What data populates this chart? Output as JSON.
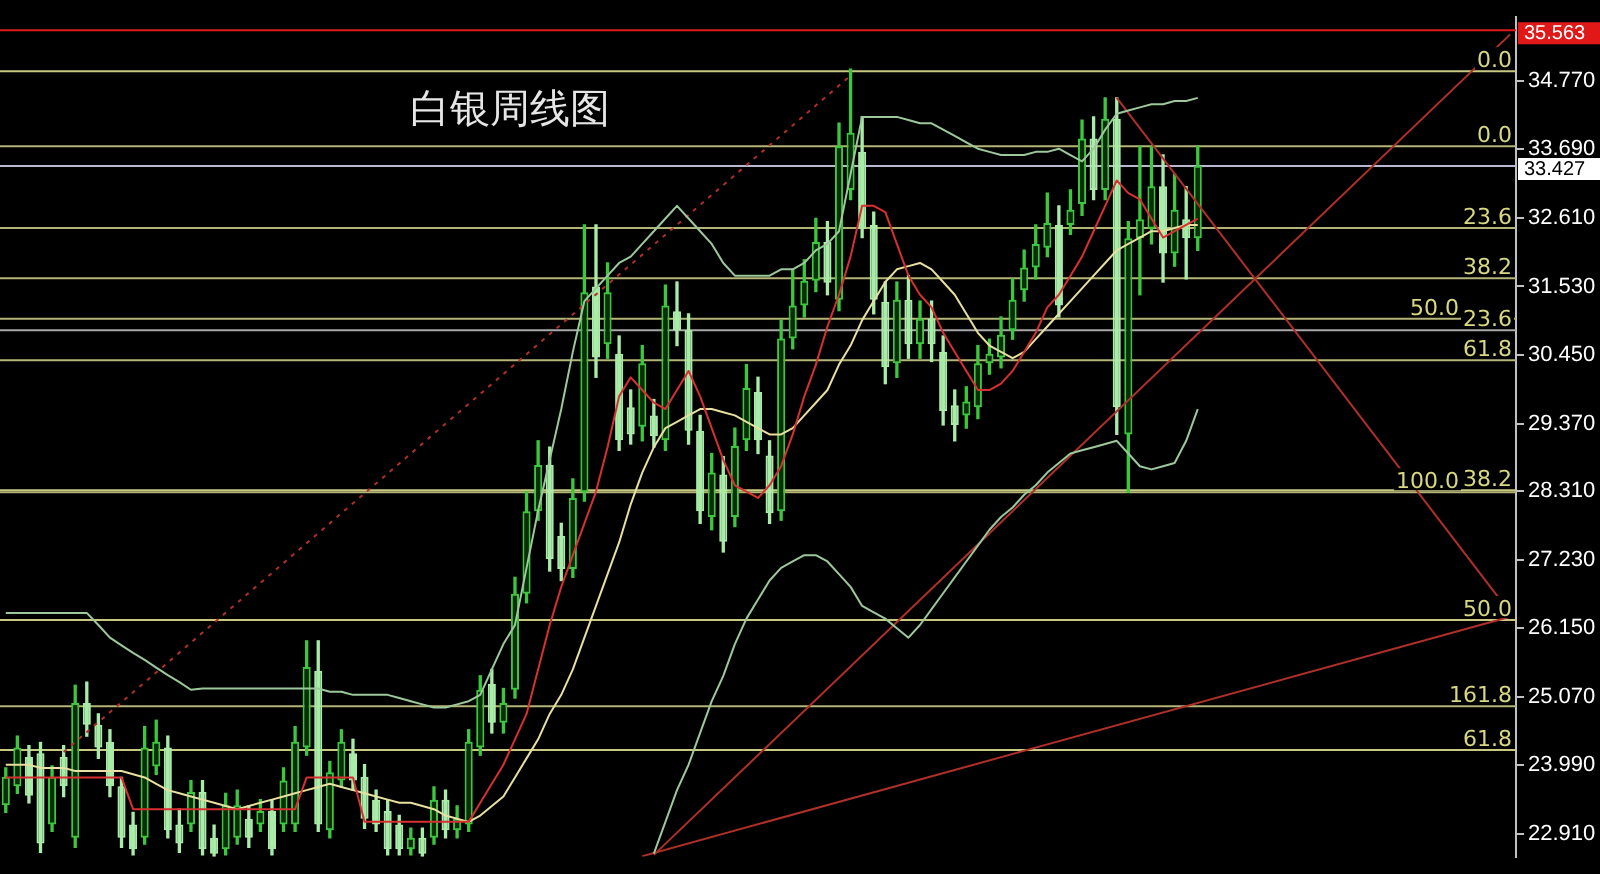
{
  "chart_data": {
    "type": "candlestick",
    "title": "白银周线图",
    "categories": [
      null,
      null,
      null,
      null,
      null,
      null,
      null,
      null,
      null,
      null,
      null,
      null,
      null,
      null,
      null,
      null,
      null,
      null,
      null,
      null,
      null,
      null,
      null,
      null,
      null,
      null,
      null,
      null,
      null,
      null,
      null,
      null,
      null,
      null,
      null,
      null,
      null,
      null,
      null,
      null,
      null,
      null,
      null,
      null,
      null,
      null,
      null,
      null,
      null,
      null,
      null,
      null,
      null,
      null,
      null,
      null,
      null,
      null,
      null,
      null,
      null,
      null,
      null,
      null,
      null,
      null,
      null,
      null,
      null,
      null,
      null,
      null,
      null,
      null,
      null,
      null,
      null,
      null,
      null,
      null,
      null,
      null,
      null,
      null,
      null,
      null,
      null,
      null,
      null,
      null,
      null,
      null,
      null,
      null,
      null,
      null,
      null,
      null,
      null,
      null,
      null,
      null,
      null,
      null,
      null,
      null,
      null,
      null,
      null,
      null,
      null,
      null,
      null,
      null,
      null,
      null,
      null,
      null,
      null,
      null,
      null,
      null,
      null,
      null,
      null,
      null,
      null,
      null,
      null,
      null,
      null
    ],
    "colors": [
      "#3cc83c",
      "#3cc83c",
      "#a8eca8",
      "#a8eca8",
      "#3cc83c",
      "#a8eca8",
      "#3cc83c",
      "#a8eca8",
      "#a8eca8",
      "#a8eca8",
      "#a8eca8",
      "#a8eca8",
      "#3cc83c",
      "#3cc83c",
      "#a8eca8",
      "#a8eca8",
      "#3cc83c",
      "#a8eca8",
      "#a8eca8",
      "#3cc83c",
      "#3cc83c",
      "#a8eca8",
      "#3cc83c",
      "#a8eca8",
      "#3cc83c",
      "#3cc83c",
      "#3cc83c",
      "#a8eca8",
      "#3cc83c",
      "#3cc83c",
      "#a8eca8",
      "#a8eca8",
      "#a8eca8",
      "#a8eca8",
      "#a8eca8",
      "#3cc83c",
      "#a8eca8",
      "#3cc83c",
      "#a8eca8",
      "#3cc83c",
      "#3cc83c",
      "#3cc83c",
      "#a8eca8",
      "#3cc83c",
      "#3cc83c",
      "#3cc83c",
      "#3cc83c",
      "#a8eca8",
      "#a8eca8",
      "#3cc83c",
      "#3cc83c",
      "#a8eca8",
      "#3cc83c",
      "#a8eca8",
      "#a8eca8",
      "#3cc83c",
      "#a8eca8",
      "#3cc83c",
      "#a8eca8",
      "#a8eca8",
      "#a8eca8",
      "#3cc83c",
      "#a8eca8",
      "#3cc83c",
      "#3cc83c",
      "#a8eca8",
      "#a8eca8",
      "#3cc83c",
      "#3cc83c",
      "#3cc83c",
      "#3cc83c",
      "#a8eca8",
      "#3cc83c",
      "#3cc83c",
      "#a8eca8",
      "#a8eca8",
      "#a8eca8",
      "#3cc83c",
      "#a8eca8",
      "#3cc83c",
      "#a8eca8",
      "#a8eca8",
      "#a8eca8",
      "#3cc83c",
      "#3cc83c",
      "#3cc83c",
      "#3cc83c",
      "#3cc83c",
      "#3cc83c",
      "#3cc83c",
      "#3cc83c",
      "#a8eca8",
      "#3cc83c",
      "#3cc83c",
      "#a8eca8",
      "#3cc83c",
      "#a8eca8",
      "#3cc83c",
      "#3cc83c",
      "#3cc83c",
      "#a8eca8",
      "#3cc83c",
      "#a8eca8",
      "#3cc83c",
      null,
      null,
      null,
      null,
      null,
      null,
      null,
      null,
      null,
      null,
      null,
      null,
      null,
      null,
      null,
      null,
      null,
      null,
      null,
      null,
      null,
      null,
      null,
      null,
      null,
      null,
      null
    ],
    "ohlc": [
      [
        23.36,
        23.95,
        23.25,
        23.81
      ],
      [
        23.66,
        24.45,
        23.55,
        24.27
      ],
      [
        24.12,
        24.3,
        23.4,
        23.51
      ],
      [
        24.18,
        24.35,
        22.62,
        22.76
      ],
      [
        23.06,
        23.98,
        22.95,
        23.81
      ],
      [
        24.12,
        24.3,
        23.5,
        23.66
      ],
      [
        22.85,
        25.25,
        22.7,
        24.97
      ],
      [
        24.97,
        25.3,
        24.45,
        24.63
      ],
      [
        24.63,
        24.8,
        24.1,
        24.27
      ],
      [
        24.36,
        24.55,
        23.5,
        23.66
      ],
      [
        23.66,
        23.8,
        22.7,
        22.85
      ],
      [
        23.06,
        23.25,
        22.58,
        22.67
      ],
      [
        22.85,
        24.6,
        22.75,
        24.27
      ],
      [
        23.97,
        24.7,
        23.85,
        24.36
      ],
      [
        24.27,
        24.45,
        22.85,
        22.97
      ],
      [
        23.06,
        23.3,
        22.62,
        22.76
      ],
      [
        23.06,
        23.75,
        22.95,
        23.57
      ],
      [
        23.57,
        23.75,
        22.58,
        22.67
      ],
      [
        22.85,
        23.05,
        22.56,
        22.6
      ],
      [
        22.67,
        23.55,
        22.58,
        23.36
      ],
      [
        22.85,
        23.6,
        22.75,
        23.36
      ],
      [
        23.15,
        23.35,
        22.7,
        22.85
      ],
      [
        23.06,
        23.45,
        22.95,
        23.27
      ],
      [
        23.27,
        23.45,
        22.58,
        22.67
      ],
      [
        23.06,
        23.95,
        22.95,
        23.75
      ],
      [
        23.06,
        24.6,
        22.95,
        24.36
      ],
      [
        24.27,
        25.95,
        24.15,
        25.54
      ],
      [
        25.48,
        25.95,
        22.95,
        23.06
      ],
      [
        22.97,
        24.05,
        22.85,
        23.88
      ],
      [
        23.75,
        24.55,
        23.65,
        24.36
      ],
      [
        24.18,
        24.4,
        23.6,
        23.75
      ],
      [
        23.81,
        24.0,
        23.0,
        23.15
      ],
      [
        23.45,
        23.6,
        22.95,
        23.06
      ],
      [
        23.27,
        23.45,
        22.58,
        22.67
      ],
      [
        23.06,
        23.2,
        22.58,
        22.67
      ],
      [
        22.67,
        23.0,
        22.58,
        22.85
      ],
      [
        22.85,
        23.0,
        22.56,
        22.6
      ],
      [
        22.85,
        23.65,
        22.75,
        23.45
      ],
      [
        23.45,
        23.6,
        22.85,
        22.97
      ],
      [
        22.97,
        23.35,
        22.85,
        23.15
      ],
      [
        23.06,
        24.55,
        22.95,
        24.36
      ],
      [
        24.27,
        25.4,
        24.15,
        25.18
      ],
      [
        25.27,
        25.5,
        24.5,
        24.66
      ],
      [
        24.66,
        25.2,
        24.5,
        24.97
      ],
      [
        25.18,
        26.95,
        25.05,
        26.69
      ],
      [
        26.69,
        28.3,
        26.55,
        27.99
      ],
      [
        27.99,
        29.1,
        27.85,
        28.72
      ],
      [
        28.72,
        29.0,
        27.05,
        27.24
      ],
      [
        27.6,
        27.8,
        26.9,
        27.08
      ],
      [
        27.08,
        28.5,
        26.95,
        28.2
      ],
      [
        28.29,
        32.5,
        28.15,
        31.44
      ],
      [
        31.53,
        32.5,
        30.1,
        30.41
      ],
      [
        30.62,
        31.9,
        30.4,
        31.44
      ],
      [
        30.47,
        30.75,
        28.95,
        29.11
      ],
      [
        29.63,
        29.9,
        29.05,
        29.2
      ],
      [
        29.32,
        30.6,
        29.1,
        30.32
      ],
      [
        29.5,
        29.75,
        29.0,
        29.17
      ],
      [
        29.11,
        31.55,
        28.95,
        31.23
      ],
      [
        31.14,
        31.6,
        30.6,
        30.84
      ],
      [
        30.84,
        31.1,
        29.05,
        29.26
      ],
      [
        29.26,
        29.5,
        27.8,
        27.99
      ],
      [
        27.9,
        28.9,
        27.7,
        28.6
      ],
      [
        28.57,
        28.85,
        27.35,
        27.51
      ],
      [
        27.9,
        29.3,
        27.75,
        29.02
      ],
      [
        29.11,
        30.3,
        28.95,
        29.93
      ],
      [
        29.87,
        30.1,
        28.9,
        29.11
      ],
      [
        28.87,
        29.1,
        27.8,
        27.96
      ],
      [
        27.99,
        31.0,
        27.85,
        30.71
      ],
      [
        30.71,
        31.8,
        30.55,
        31.23
      ],
      [
        31.23,
        31.95,
        31.05,
        31.62
      ],
      [
        31.62,
        32.6,
        31.45,
        32.23
      ],
      [
        32.23,
        32.55,
        31.4,
        31.59
      ],
      [
        31.32,
        34.1,
        31.15,
        33.74
      ],
      [
        33.05,
        34.95,
        32.9,
        33.95
      ],
      [
        33.65,
        34.2,
        32.3,
        32.44
      ],
      [
        32.5,
        32.7,
        31.1,
        31.32
      ],
      [
        31.29,
        31.6,
        30.0,
        30.26
      ],
      [
        30.32,
        31.6,
        30.1,
        31.32
      ],
      [
        31.32,
        31.7,
        30.4,
        30.62
      ],
      [
        30.62,
        31.3,
        30.4,
        31.02
      ],
      [
        31.02,
        31.3,
        30.35,
        30.62
      ],
      [
        30.5,
        30.75,
        29.35,
        29.57
      ],
      [
        29.66,
        29.9,
        29.1,
        29.35
      ],
      [
        29.5,
        29.95,
        29.3,
        29.72
      ],
      [
        29.63,
        30.6,
        29.45,
        30.32
      ],
      [
        30.32,
        30.7,
        30.15,
        30.47
      ],
      [
        30.41,
        31.05,
        30.25,
        30.77
      ],
      [
        30.84,
        31.65,
        30.7,
        31.32
      ],
      [
        31.47,
        32.1,
        31.3,
        31.83
      ],
      [
        31.83,
        32.5,
        31.65,
        32.2
      ],
      [
        32.14,
        33.0,
        32.0,
        32.53
      ],
      [
        32.5,
        32.8,
        31.05,
        31.23
      ],
      [
        32.5,
        33.05,
        32.35,
        32.74
      ],
      [
        32.83,
        34.15,
        32.65,
        33.86
      ],
      [
        33.86,
        34.2,
        32.9,
        33.05
      ],
      [
        33.05,
        34.5,
        32.9,
        34.17
      ],
      [
        34.17,
        34.5,
        29.2,
        29.63
      ],
      [
        29.2,
        32.55,
        28.29,
        32.29
      ],
      [
        32.29,
        33.74,
        31.4,
        32.59
      ],
      [
        32.44,
        33.74,
        32.2,
        33.11
      ],
      [
        33.11,
        33.6,
        31.6,
        32.05
      ],
      [
        32.05,
        33.3,
        31.85,
        32.74
      ],
      [
        32.59,
        33.1,
        31.65,
        32.29
      ],
      [
        32.29,
        33.74,
        32.1,
        33.43
      ],
      null,
      null,
      null,
      null,
      null,
      null,
      null,
      null,
      null,
      null,
      null,
      null,
      null,
      null,
      null,
      null,
      null,
      null,
      null,
      null,
      null,
      null,
      null,
      null,
      null,
      null,
      null
    ],
    "ylim": [
      22.55,
      35.77
    ],
    "yticks": [
      {
        "value": 22.91,
        "label": "22.910"
      },
      {
        "value": 23.99,
        "label": "23.990"
      },
      {
        "value": 25.07,
        "label": "25.070"
      },
      {
        "value": 26.15,
        "label": "26.150"
      },
      {
        "value": 27.23,
        "label": "27.230"
      },
      {
        "value": 28.31,
        "label": "28.310"
      },
      {
        "value": 29.37,
        "label": "29.370"
      },
      {
        "value": 30.45,
        "label": "30.450"
      },
      {
        "value": 31.53,
        "label": "31.530"
      },
      {
        "value": 32.61,
        "label": "32.610"
      },
      {
        "value": 33.69,
        "label": "33.690"
      },
      {
        "value": 34.77,
        "label": "34.770"
      }
    ],
    "tick_labels": "y",
    "series": [
      {
        "type": "line",
        "color": "#9cc89c",
        "values": [
          26.39,
          26.39,
          26.39,
          26.39,
          26.39,
          26.39,
          26.39,
          26.39,
          26.2,
          26.0,
          25.88,
          25.76,
          25.65,
          25.53,
          25.41,
          25.3,
          25.18,
          25.2,
          25.2,
          25.2,
          25.2,
          25.2,
          25.2,
          25.2,
          25.2,
          25.2,
          25.2,
          25.2,
          25.15,
          25.15,
          25.1,
          25.1,
          25.1,
          25.1,
          25.05,
          25.0,
          24.95,
          24.9,
          24.9,
          24.95,
          25.0,
          25.1,
          25.5,
          25.9,
          26.2,
          27.1,
          28.0,
          28.8,
          29.6,
          30.5,
          31.3,
          31.5,
          31.7,
          31.9,
          32.0,
          32.2,
          32.4,
          32.6,
          32.8,
          32.6,
          32.4,
          32.2,
          31.9,
          31.7,
          31.7,
          31.7,
          31.7,
          31.8,
          31.8,
          31.9,
          32.1,
          32.2,
          32.4,
          33.3,
          34.2,
          34.2,
          34.2,
          34.2,
          34.15,
          34.1,
          34.1,
          34.0,
          33.9,
          33.8,
          33.7,
          33.65,
          33.6,
          33.6,
          33.6,
          33.65,
          33.65,
          33.7,
          33.6,
          33.5,
          33.7,
          34.0,
          34.25,
          34.3,
          34.35,
          34.4,
          34.4,
          34.45,
          34.45,
          34.5,
          null,
          null,
          null,
          null,
          null,
          null,
          null,
          null,
          null,
          null,
          null,
          null,
          null,
          null,
          null,
          null,
          null,
          null,
          null,
          null,
          null,
          null,
          null,
          null,
          null,
          null,
          null
        ]
      },
      {
        "type": "line",
        "color": "#9cc89c",
        "values": [
          null,
          null,
          null,
          null,
          null,
          null,
          null,
          null,
          null,
          null,
          null,
          null,
          null,
          null,
          null,
          null,
          null,
          null,
          null,
          null,
          null,
          null,
          null,
          null,
          null,
          null,
          null,
          null,
          null,
          null,
          null,
          null,
          null,
          null,
          null,
          null,
          null,
          null,
          null,
          null,
          null,
          null,
          null,
          null,
          null,
          null,
          null,
          null,
          null,
          null,
          null,
          null,
          null,
          null,
          null,
          null,
          22.6,
          23.1,
          23.6,
          24.0,
          24.5,
          25.0,
          25.4,
          25.9,
          26.3,
          26.6,
          26.9,
          27.1,
          27.2,
          27.3,
          27.3,
          27.2,
          27.0,
          26.8,
          26.5,
          26.4,
          26.3,
          26.15,
          26.0,
          26.2,
          26.45,
          26.7,
          26.95,
          27.2,
          27.45,
          27.7,
          27.9,
          28.05,
          28.25,
          28.4,
          28.6,
          28.75,
          28.9,
          28.95,
          29.0,
          29.05,
          29.1,
          28.9,
          28.7,
          28.65,
          28.7,
          28.75,
          29.1,
          29.6,
          null,
          null,
          null,
          null,
          null,
          null,
          null,
          null,
          null,
          null,
          null,
          null,
          null,
          null,
          null,
          null,
          null,
          null,
          null,
          null,
          null,
          null,
          null,
          null,
          null,
          null,
          null
        ]
      },
      {
        "type": "line",
        "color": "#d83030",
        "values": [
          23.8,
          23.8,
          23.8,
          23.8,
          23.8,
          23.8,
          23.8,
          23.8,
          23.8,
          23.8,
          23.8,
          23.3,
          23.3,
          23.3,
          23.3,
          23.3,
          23.3,
          23.3,
          23.3,
          23.3,
          23.3,
          23.3,
          23.3,
          23.3,
          23.3,
          23.3,
          23.8,
          23.8,
          23.8,
          23.8,
          23.8,
          23.1,
          23.1,
          23.1,
          23.1,
          23.1,
          23.1,
          23.1,
          23.1,
          23.1,
          23.1,
          23.4,
          23.7,
          24.0,
          24.4,
          24.8,
          25.5,
          26.2,
          26.8,
          27.3,
          27.8,
          28.3,
          29.0,
          29.8,
          30.1,
          29.9,
          29.7,
          29.6,
          29.9,
          30.2,
          29.8,
          29.3,
          28.8,
          28.4,
          28.3,
          28.2,
          28.4,
          28.7,
          29.2,
          29.8,
          30.3,
          30.9,
          31.4,
          32.0,
          32.8,
          32.8,
          32.7,
          32.2,
          31.7,
          31.4,
          31.2,
          30.8,
          30.5,
          30.2,
          29.9,
          29.9,
          30.0,
          30.2,
          30.5,
          30.8,
          31.2,
          31.4,
          31.7,
          32.0,
          32.4,
          32.8,
          33.2,
          33.0,
          32.9,
          32.6,
          32.3,
          32.4,
          32.5,
          32.6,
          null,
          null,
          null,
          null,
          null,
          null,
          null,
          null,
          null,
          null,
          null,
          null,
          null,
          null,
          null,
          null,
          null,
          null,
          null,
          null,
          null,
          null,
          null,
          null,
          null,
          null,
          null
        ]
      },
      {
        "type": "line",
        "color": "#e8e0a0",
        "values": [
          24.0,
          24.0,
          24.0,
          23.95,
          23.95,
          23.95,
          23.9,
          23.9,
          23.9,
          23.9,
          23.9,
          23.85,
          23.8,
          23.7,
          23.6,
          23.55,
          23.5,
          23.45,
          23.4,
          23.35,
          23.3,
          23.35,
          23.4,
          23.45,
          23.5,
          23.55,
          23.6,
          23.65,
          23.7,
          23.65,
          23.6,
          23.55,
          23.5,
          23.45,
          23.4,
          23.4,
          23.35,
          23.3,
          23.2,
          23.15,
          23.1,
          23.2,
          23.35,
          23.5,
          23.8,
          24.1,
          24.4,
          24.8,
          25.1,
          25.5,
          26.0,
          26.5,
          27.0,
          27.5,
          28.1,
          28.6,
          29.0,
          29.3,
          29.4,
          29.5,
          29.6,
          29.6,
          29.55,
          29.5,
          29.4,
          29.3,
          29.2,
          29.2,
          29.3,
          29.5,
          29.7,
          29.9,
          30.3,
          30.6,
          31.0,
          31.3,
          31.6,
          31.8,
          31.85,
          31.9,
          31.8,
          31.6,
          31.4,
          31.1,
          30.8,
          30.6,
          30.5,
          30.4,
          30.5,
          30.7,
          30.9,
          31.1,
          31.3,
          31.5,
          31.7,
          31.9,
          32.1,
          32.2,
          32.3,
          32.4,
          32.4,
          32.45,
          32.5,
          32.5,
          null,
          null,
          null,
          null,
          null,
          null,
          null,
          null,
          null,
          null,
          null,
          null,
          null,
          null,
          null,
          null,
          null,
          null,
          null,
          null,
          null,
          null,
          null,
          null,
          null,
          null,
          null
        ]
      },
      {
        "type": "line",
        "color": "#b03028",
        "values": [
          null,
          null,
          null,
          null,
          null,
          null,
          null,
          null,
          null,
          null,
          null,
          null,
          null,
          null,
          null,
          null,
          null,
          null,
          null,
          null,
          null,
          null,
          null,
          null,
          null,
          null,
          null,
          null,
          null,
          null,
          null,
          null,
          null,
          null,
          null,
          null,
          null,
          null,
          null,
          null,
          null,
          null,
          null,
          null,
          null,
          null,
          null,
          null,
          null,
          null,
          null,
          null,
          null,
          null,
          null,
          null,
          22.58,
          null,
          null,
          null,
          null,
          null,
          null,
          null,
          null,
          null,
          null,
          null,
          null,
          null,
          null,
          null,
          null,
          null,
          null,
          null,
          null,
          null,
          null,
          null,
          null,
          null,
          null,
          null,
          null,
          null,
          null,
          null,
          null,
          null,
          null,
          null,
          null,
          null,
          null,
          null,
          null,
          null,
          null,
          null,
          null,
          null,
          null,
          null,
          null,
          null,
          null,
          null,
          null,
          null,
          null,
          null,
          null,
          null,
          null,
          null,
          null,
          null,
          null,
          null,
          null,
          null,
          null,
          null,
          null,
          null,
          null,
          null,
          null,
          null,
          35.5
        ]
      },
      {
        "type": "line",
        "color": "#b03028",
        "line_style": "dotted",
        "values": [
          null,
          null,
          null,
          null,
          null,
          24.2,
          null,
          null,
          null,
          null,
          null,
          null,
          null,
          null,
          null,
          null,
          null,
          null,
          null,
          null,
          null,
          null,
          null,
          null,
          null,
          null,
          null,
          null,
          null,
          null,
          null,
          null,
          null,
          null,
          null,
          null,
          null,
          null,
          null,
          null,
          null,
          null,
          null,
          null,
          null,
          null,
          null,
          null,
          null,
          null,
          null,
          null,
          null,
          null,
          null,
          null,
          null,
          null,
          null,
          null,
          null,
          null,
          null,
          null,
          null,
          null,
          null,
          null,
          null,
          null,
          null,
          null,
          null,
          34.85,
          null,
          null,
          null,
          null,
          null,
          null,
          null,
          null,
          null,
          null,
          null,
          null,
          null,
          null,
          null,
          null,
          null,
          null,
          null,
          null,
          null,
          null,
          null,
          null,
          null,
          null,
          null,
          null,
          null,
          null,
          null,
          null,
          null,
          null,
          null,
          null,
          null,
          null,
          null,
          null,
          null,
          null,
          null,
          null,
          null,
          null,
          null,
          null,
          null,
          null,
          null,
          null,
          null,
          null,
          null,
          null,
          null
        ]
      },
      {
        "type": "line",
        "color": "#b03028",
        "values": [
          null,
          null,
          null,
          null,
          null,
          null,
          null,
          null,
          null,
          null,
          null,
          null,
          null,
          null,
          null,
          null,
          null,
          null,
          null,
          null,
          null,
          null,
          null,
          null,
          null,
          null,
          null,
          null,
          null,
          null,
          null,
          null,
          null,
          null,
          null,
          null,
          null,
          null,
          null,
          null,
          null,
          null,
          null,
          null,
          null,
          null,
          null,
          null,
          null,
          null,
          null,
          null,
          null,
          null,
          null,
          null,
          null,
          null,
          null,
          null,
          null,
          null,
          null,
          null,
          null,
          null,
          null,
          null,
          null,
          null,
          null,
          null,
          null,
          null,
          null,
          null,
          null,
          null,
          null,
          null,
          null,
          null,
          null,
          null,
          null,
          null,
          null,
          null,
          null,
          null,
          null,
          null,
          null,
          null,
          null,
          null,
          34.5,
          null,
          null,
          null,
          null,
          null,
          null,
          null,
          null,
          null,
          null,
          null,
          null,
          null,
          null,
          null,
          null,
          null,
          null,
          null,
          null,
          null,
          null,
          null,
          null,
          null,
          null,
          null,
          null,
          null,
          null,
          null,
          null,
          null,
          26.39
        ]
      },
      {
        "type": "line",
        "color": "#b03028",
        "values": [
          null,
          null,
          null,
          null,
          null,
          null,
          null,
          null,
          null,
          null,
          null,
          null,
          null,
          null,
          null,
          null,
          null,
          null,
          null,
          null,
          null,
          null,
          null,
          null,
          null,
          null,
          null,
          null,
          null,
          null,
          null,
          null,
          null,
          null,
          null,
          null,
          null,
          null,
          null,
          null,
          null,
          null,
          null,
          null,
          null,
          null,
          null,
          null,
          null,
          null,
          null,
          null,
          null,
          null,
          null,
          22.56,
          null,
          null,
          null,
          null,
          null,
          null,
          null,
          null,
          null,
          null,
          null,
          null,
          null,
          null,
          null,
          null,
          null,
          null,
          null,
          null,
          null,
          null,
          null,
          null,
          null,
          null,
          null,
          null,
          null,
          null,
          null,
          null,
          null,
          null,
          null,
          null,
          null,
          null,
          null,
          null,
          null,
          null,
          null,
          null,
          null,
          null,
          null,
          null,
          null,
          null,
          null,
          null,
          null,
          null,
          null,
          null,
          null,
          null,
          null,
          null,
          null,
          null,
          null,
          null,
          null,
          null,
          null,
          null,
          null,
          null,
          null,
          null,
          null,
          null,
          26.33
        ]
      }
    ],
    "ref_lines": [
      {
        "axis": "y",
        "value": 35.563,
        "label": "35.563",
        "color": "#e01818"
      },
      {
        "axis": "y",
        "value": 33.427,
        "label": "33.427",
        "color": "#b8b8d0"
      },
      {
        "axis": "y",
        "value": 34.92,
        "color": "#c8c880"
      },
      {
        "axis": "y",
        "value": 30.84,
        "color": "#a8a8a8"
      },
      {
        "axis": "y",
        "value": 28.32,
        "color": "#c8c880"
      },
      {
        "axis": "y",
        "value": 26.28,
        "color": "#c8c880"
      },
      {
        "axis": "y",
        "value": 24.23,
        "color": "#c8c880"
      },
      {
        "axis": "y",
        "value": 33.74,
        "color": "#b4b478"
      },
      {
        "axis": "y",
        "value": 32.45,
        "color": "#b4b478"
      },
      {
        "axis": "y",
        "value": 31.66,
        "color": "#b4b478"
      },
      {
        "axis": "y",
        "value": 31.02,
        "color": "#b4b478"
      },
      {
        "axis": "y",
        "value": 30.37,
        "color": "#b4b478"
      },
      {
        "axis": "y",
        "value": 28.29,
        "color": "#b4b478"
      },
      {
        "axis": "y",
        "value": 24.92,
        "color": "#b4b478"
      }
    ],
    "annotations": [
      {
        "text": "0.0",
        "y": 34.92
      },
      {
        "text": "23.6",
        "y": 30.84
      },
      {
        "text": "38.2",
        "y": 28.32
      },
      {
        "text": "50.0",
        "y": 26.28
      },
      {
        "text": "61.8",
        "y": 24.23
      },
      {
        "text": "0.0",
        "y": 33.74
      },
      {
        "text": "23.6",
        "y": 32.45
      },
      {
        "text": "38.2",
        "y": 31.66
      },
      {
        "text": "50.0",
        "y": 31.02
      },
      {
        "text": "61.8",
        "y": 30.37
      },
      {
        "text": "100.0",
        "y": 28.29
      },
      {
        "text": "161.8",
        "y": 24.92
      }
    ],
    "grid": false,
    "legend": false
  }
}
